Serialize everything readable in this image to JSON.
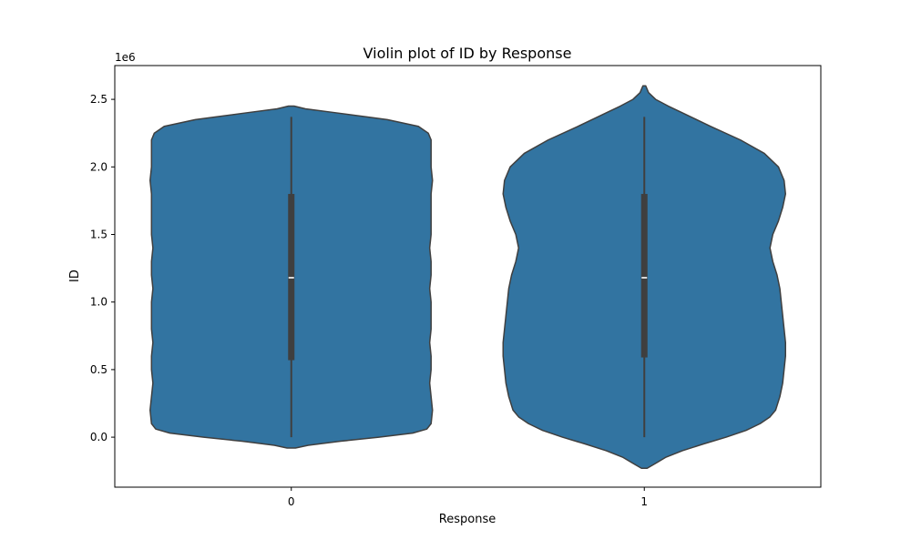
{
  "chart_data": {
    "type": "violin",
    "title": "Violin plot of ID by Response",
    "xlabel": "Response",
    "ylabel": "ID",
    "y_offset_label": "1e6",
    "categories": [
      "0",
      "1"
    ],
    "ylim": [
      -0.37,
      2.75
    ],
    "yticks": [
      0.0,
      0.5,
      1.0,
      1.5,
      2.0,
      2.5
    ],
    "ytick_labels": [
      "0.0",
      "0.5",
      "1.0",
      "1.5",
      "2.0",
      "2.5"
    ],
    "y_scale_note": "values in units of 1e6",
    "grid": false,
    "legend": "none",
    "colors": {
      "violin_fill": "#3274a1",
      "outline": "#3f3f3f",
      "box": "#3f3f3f",
      "median": "#ffffff"
    },
    "violins": [
      {
        "category": "0",
        "box": {
          "whisker_low": 0.0,
          "q1": 0.57,
          "median": 1.18,
          "q3": 1.8,
          "whisker_high": 2.37
        },
        "density": {
          "y": [
            -0.08,
            -0.06,
            -0.03,
            0.0,
            0.03,
            0.06,
            0.1,
            0.2,
            0.3,
            0.4,
            0.5,
            0.6,
            0.7,
            0.8,
            0.9,
            1.0,
            1.1,
            1.2,
            1.3,
            1.4,
            1.5,
            1.6,
            1.7,
            1.8,
            1.9,
            2.0,
            2.1,
            2.2,
            2.25,
            2.3,
            2.35,
            2.4,
            2.43,
            2.45
          ],
          "w": [
            0.03,
            0.12,
            0.35,
            0.62,
            0.86,
            0.96,
            0.99,
            1.0,
            0.99,
            0.98,
            0.99,
            0.99,
            0.98,
            0.99,
            0.99,
            0.99,
            0.98,
            0.99,
            0.99,
            0.98,
            0.99,
            0.99,
            0.99,
            0.99,
            1.0,
            0.99,
            0.99,
            0.99,
            0.97,
            0.9,
            0.68,
            0.32,
            0.1,
            0.02
          ]
        }
      },
      {
        "category": "1",
        "box": {
          "whisker_low": 0.0,
          "q1": 0.59,
          "median": 1.18,
          "q3": 1.8,
          "whisker_high": 2.37
        },
        "density": {
          "y": [
            -0.23,
            -0.2,
            -0.15,
            -0.1,
            -0.05,
            0.0,
            0.05,
            0.1,
            0.15,
            0.2,
            0.3,
            0.4,
            0.5,
            0.6,
            0.7,
            0.8,
            0.9,
            1.0,
            1.1,
            1.2,
            1.3,
            1.4,
            1.5,
            1.6,
            1.7,
            1.8,
            1.9,
            2.0,
            2.1,
            2.2,
            2.3,
            2.4,
            2.45,
            2.5,
            2.55,
            2.6
          ],
          "w": [
            0.02,
            0.07,
            0.15,
            0.27,
            0.42,
            0.58,
            0.72,
            0.82,
            0.89,
            0.93,
            0.96,
            0.98,
            0.99,
            1.0,
            1.0,
            0.99,
            0.98,
            0.97,
            0.96,
            0.94,
            0.91,
            0.89,
            0.91,
            0.95,
            0.98,
            1.0,
            0.99,
            0.95,
            0.85,
            0.68,
            0.47,
            0.27,
            0.17,
            0.08,
            0.03,
            0.01
          ]
        }
      }
    ]
  }
}
